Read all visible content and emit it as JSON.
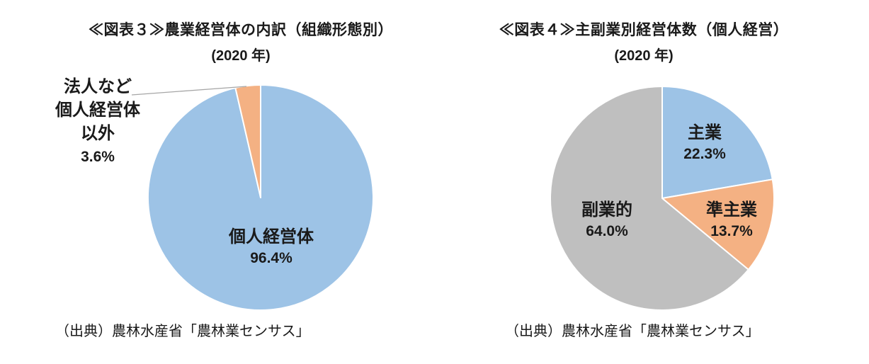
{
  "page": {
    "background": "#ffffff",
    "text_color": "#1a1a1a",
    "leader_line_color": "#a6a6a6"
  },
  "chart_data": [
    {
      "type": "pie",
      "title": "≪図表３≫農業経営体の内訳（組織形態別）",
      "subtitle": "(2020 年)",
      "source": "（出典）農林水産省「農林業センサス」",
      "start_angle_deg": -90,
      "direction": "clockwise",
      "slices": [
        {
          "name": "個人経営体",
          "value": 96.4,
          "pct_label": "96.4%",
          "color": "#9dc3e6"
        },
        {
          "name": "法人など個人経営体以外",
          "value": 3.6,
          "pct_label": "3.6%",
          "color": "#f4b183",
          "callout_lines": [
            "法人など",
            "個人経営体",
            "以外"
          ]
        }
      ]
    },
    {
      "type": "pie",
      "title": "≪図表４≫主副業別経営体数（個人経営）",
      "subtitle": "(2020 年)",
      "source": "（出典）農林水産省「農林業センサス」",
      "start_angle_deg": -90,
      "direction": "clockwise",
      "slices": [
        {
          "name": "主業",
          "value": 22.3,
          "pct_label": "22.3%",
          "color": "#9dc3e6"
        },
        {
          "name": "準主業",
          "value": 13.7,
          "pct_label": "13.7%",
          "color": "#f4b183"
        },
        {
          "name": "副業的",
          "value": 64.0,
          "pct_label": "64.0%",
          "color": "#bfbfbf"
        }
      ]
    }
  ]
}
